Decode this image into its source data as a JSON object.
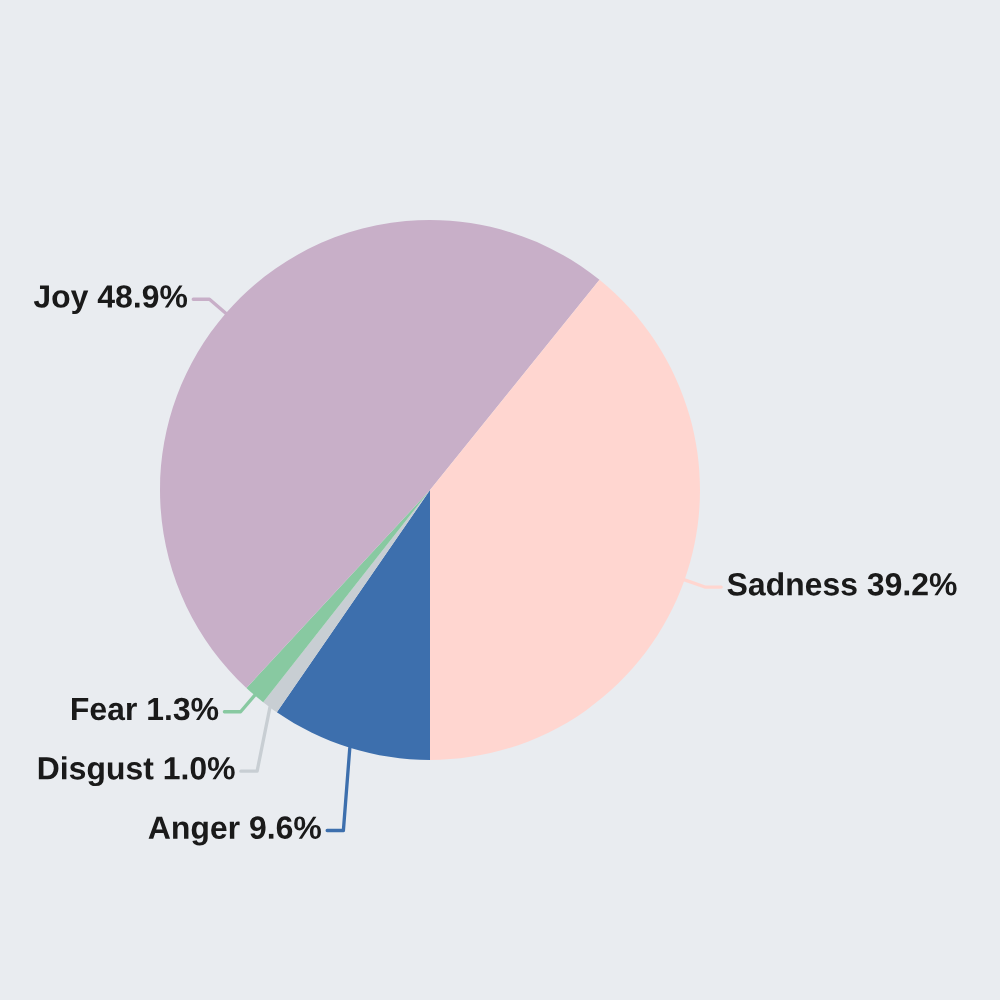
{
  "chart_data": {
    "type": "pie",
    "categories": [
      "Anger",
      "Disgust",
      "Fear",
      "Joy",
      "Sadness"
    ],
    "values": [
      9.6,
      1.0,
      1.3,
      48.9,
      39.2
    ],
    "colors": [
      "#3d6fad",
      "#c8ced3",
      "#88c9a1",
      "#c8afc8",
      "#ffd6d0"
    ],
    "value_labels": [
      "9.6%",
      "1.0%",
      "1.3%",
      "48.9%",
      "39.2%"
    ]
  }
}
